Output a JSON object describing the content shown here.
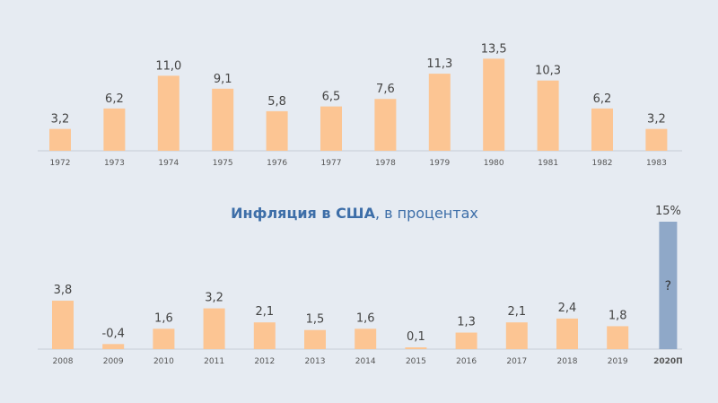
{
  "title_main": "Инфляция в США",
  "title_rest": ", в процентах",
  "colors": {
    "bar": "#fcc593",
    "forecast_bar": "#8fa8c8",
    "axis": "#c5ccd6",
    "label": "#444444",
    "tick": "#555555",
    "title": "#3d6ea8",
    "background": "#e6ebf2"
  },
  "chart_data": [
    {
      "type": "bar",
      "title": "",
      "xlabel": "",
      "ylabel": "",
      "categories": [
        "1972",
        "1973",
        "1974",
        "1975",
        "1976",
        "1977",
        "1978",
        "1979",
        "1980",
        "1981",
        "1982",
        "1983"
      ],
      "values": [
        3.2,
        6.2,
        11.0,
        9.1,
        5.8,
        6.5,
        7.6,
        11.3,
        13.5,
        10.3,
        6.2,
        3.2
      ],
      "value_labels": [
        "3,2",
        "6,2",
        "11,0",
        "9,1",
        "5,8",
        "6,5",
        "7,6",
        "11,3",
        "13,5",
        "10,3",
        "6,2",
        "3,2"
      ],
      "grid": false
    },
    {
      "type": "bar",
      "title": "Инфляция в США, в процентах",
      "xlabel": "",
      "ylabel": "",
      "categories": [
        "2008",
        "2009",
        "2010",
        "2011",
        "2012",
        "2013",
        "2014",
        "2015",
        "2016",
        "2017",
        "2018",
        "2019",
        "2020П"
      ],
      "values": [
        3.8,
        -0.4,
        1.6,
        3.2,
        2.1,
        1.5,
        1.6,
        0.1,
        1.3,
        2.1,
        2.4,
        1.8,
        15
      ],
      "value_labels": [
        "3,8",
        "-0,4",
        "1,6",
        "3,2",
        "2,1",
        "1,5",
        "1,6",
        "0,1",
        "1,3",
        "2,1",
        "2,4",
        "1,8",
        "15%"
      ],
      "forecast_inner_label": "?",
      "grid": false
    }
  ]
}
